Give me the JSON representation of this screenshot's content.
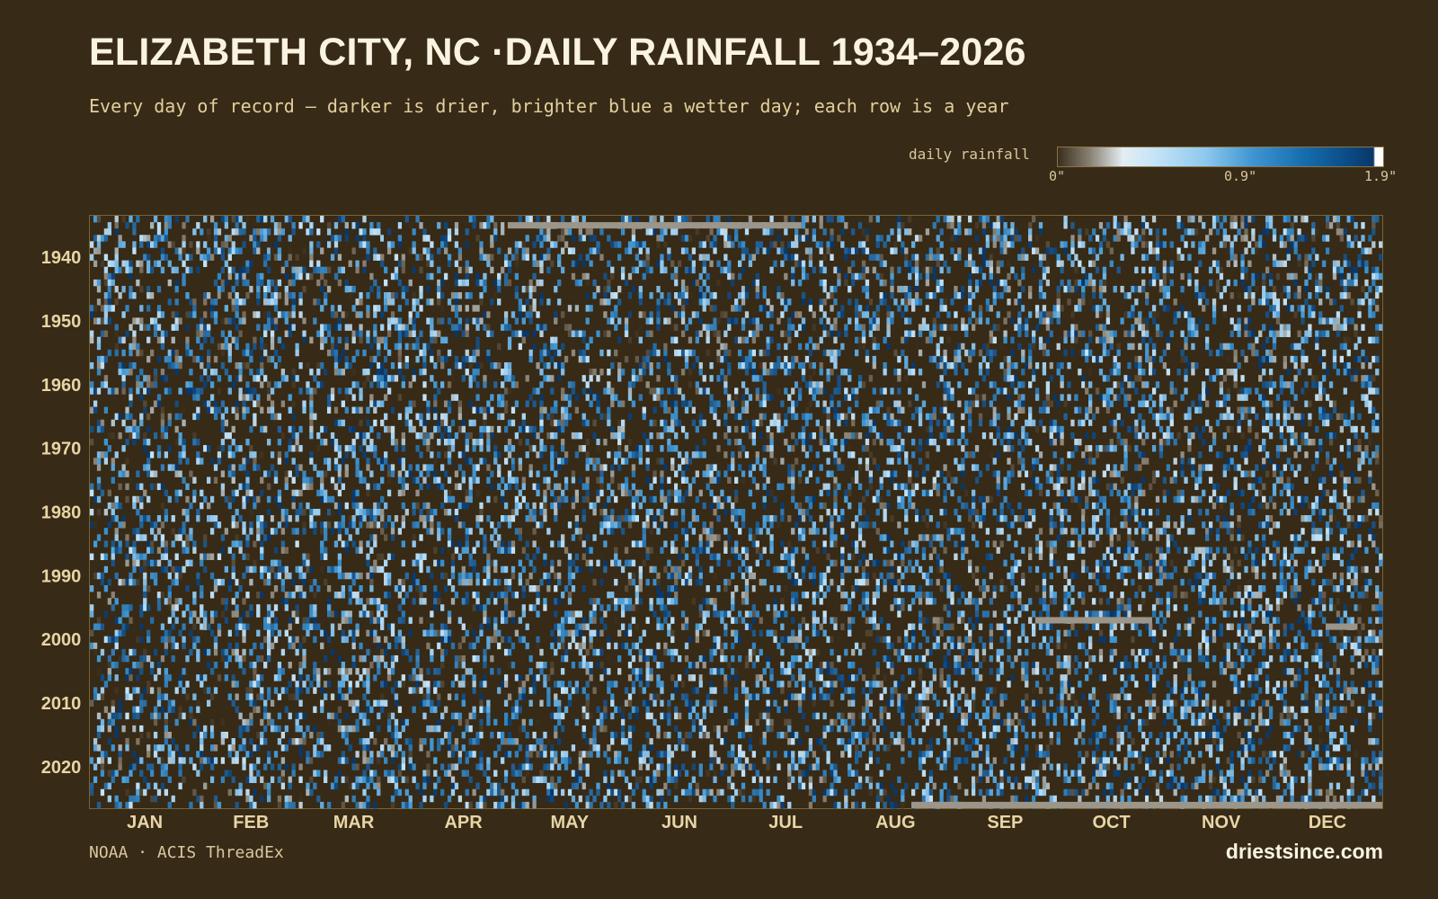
{
  "header": {
    "title": "ELIZABETH CITY, NC ·DAILY RAINFALL 1934–2026",
    "subtitle": "Every day of record — darker is drier, brighter blue a wetter day; each row is a year"
  },
  "legend": {
    "label": "daily rainfall",
    "ticks": [
      "0\"",
      "0.9\"",
      "1.9\""
    ]
  },
  "footer": {
    "source": "NOAA · ACIS ThreadEx",
    "brand": "driestsince.com"
  },
  "colors": {
    "background": "#372a16",
    "dry": "#372a16",
    "trace": "#8b8274",
    "light": "#c5e3f7",
    "mid": "#3f95d1",
    "wet": "#0a3768",
    "max": "#ffffff",
    "missing": "#9c958a"
  },
  "chart_data": {
    "type": "heatmap",
    "title": "ELIZABETH CITY, NC ·DAILY RAINFALL 1934–2026",
    "x_axis": "day of year",
    "y_axis": "year",
    "year_range": [
      1934,
      2026
    ],
    "value_range": [
      0,
      1.9
    ],
    "value_unit": "inches",
    "colorbar_ticks": [
      0,
      0.9,
      1.9
    ],
    "x_ticks": [
      "JAN",
      "FEB",
      "MAR",
      "APR",
      "MAY",
      "JUN",
      "JUL",
      "AUG",
      "SEP",
      "OCT",
      "NOV",
      "DEC"
    ],
    "x_tick_days": [
      16,
      46,
      75,
      106,
      136,
      167,
      197,
      228,
      259,
      289,
      320,
      350
    ],
    "y_ticks": [
      1940,
      1950,
      1960,
      1970,
      1980,
      1990,
      2000,
      2010,
      2020
    ],
    "missing_data_runs": [
      {
        "year": 1935,
        "start_day": 119,
        "end_day": 201
      },
      {
        "year": 1997,
        "start_day": 268,
        "end_day": 300
      },
      {
        "year": 1998,
        "start_day": 350,
        "end_day": 358
      },
      {
        "year": 2026,
        "start_day": 233,
        "end_day": 365
      }
    ],
    "grid": false,
    "legend_position": "top-right"
  }
}
